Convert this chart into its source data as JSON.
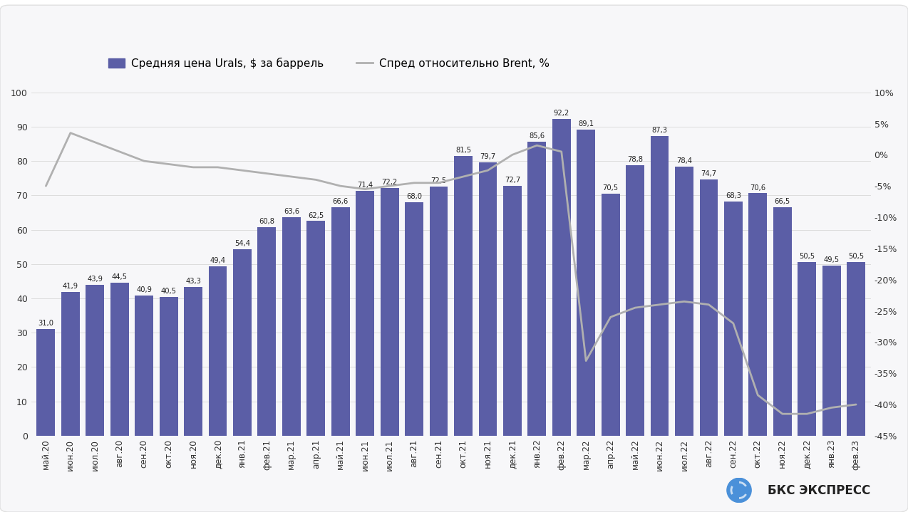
{
  "categories": [
    "май.20",
    "июн.20",
    "июл.20",
    "авг.20",
    "сен.20",
    "окт.20",
    "ноя.20",
    "дек.20",
    "янв.21",
    "фев.21",
    "мар.21",
    "апр.21",
    "май.21",
    "июн.21",
    "июл.21",
    "авг.21",
    "сен.21",
    "окт.21",
    "ноя.21",
    "дек.21",
    "янв.22",
    "фев.22",
    "мар.22",
    "апр.22",
    "май.22",
    "июн.22",
    "июл.22",
    "авг.22",
    "сен.22",
    "окт.22",
    "ноя.22",
    "дек.22",
    "янв.23",
    "фев.23"
  ],
  "bar_values": [
    31.0,
    41.9,
    43.9,
    44.5,
    40.9,
    40.5,
    43.3,
    49.4,
    54.4,
    60.8,
    63.6,
    62.5,
    66.6,
    71.4,
    72.2,
    68.0,
    72.5,
    81.5,
    79.7,
    72.7,
    85.6,
    92.2,
    89.1,
    70.5,
    78.8,
    87.3,
    78.4,
    74.7,
    68.3,
    70.6,
    66.5,
    50.5,
    49.5,
    50.5
  ],
  "line_values": [
    -5.0,
    3.5,
    2.0,
    0.5,
    -1.0,
    -1.5,
    -2.0,
    -2.0,
    -2.5,
    -3.0,
    -3.5,
    -4.0,
    -5.0,
    -5.5,
    -5.0,
    -4.5,
    -4.5,
    -3.5,
    -2.5,
    0.0,
    1.5,
    0.5,
    -33.0,
    -26.0,
    -24.5,
    -24.0,
    -23.5,
    -24.0,
    -27.0,
    -38.5,
    -41.5,
    -41.5,
    -40.5,
    -40.0
  ],
  "bar_color": "#5B5EA6",
  "line_color": "#B0B0B0",
  "legend_bar_label": "Средняя цена Urals, $ за баррель",
  "legend_line_label": "Спред относительно Brent, %",
  "ylim_left": [
    0,
    100
  ],
  "ylim_right": [
    -45,
    10
  ],
  "yticks_left": [
    0,
    10,
    20,
    30,
    40,
    50,
    60,
    70,
    80,
    90,
    100
  ],
  "yticks_right": [
    -45,
    -40,
    -35,
    -30,
    -25,
    -20,
    -15,
    -10,
    -5,
    0,
    5,
    10
  ],
  "background_color": "#FFFFFF",
  "card_color": "#F7F7F9",
  "bar_label_fontsize": 7.2,
  "axis_fontsize": 9,
  "tick_label_fontsize": 8.5
}
